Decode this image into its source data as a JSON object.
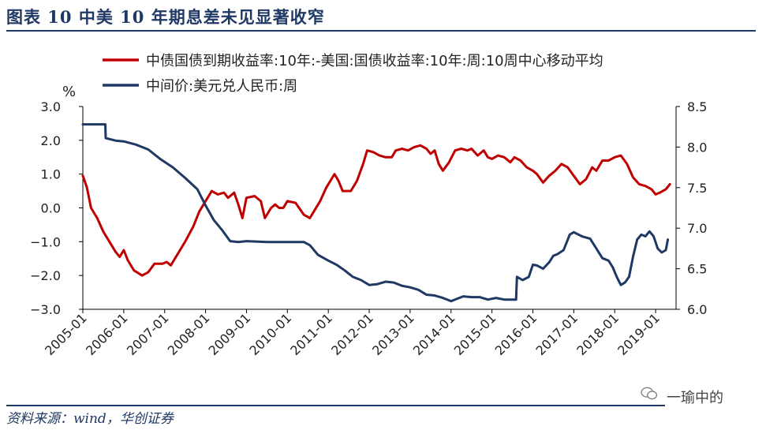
{
  "header": {
    "figure_title": "图表 10 中美 10 年期息差未见显著收窄"
  },
  "footer": {
    "source": "资料来源：wind，华创证券",
    "watermark": "一瑜中的"
  },
  "chart_data": {
    "type": "line",
    "left_axis_unit": "%",
    "ylim_left": [
      -3.0,
      3.0
    ],
    "ylim_right": [
      6.0,
      8.5
    ],
    "left_ticks": [
      "3.0",
      "2.0",
      "1.0",
      "0.0",
      "−1.0",
      "−2.0",
      "−3.0"
    ],
    "right_ticks": [
      "8.5",
      "8.0",
      "7.5",
      "7.0",
      "6.5",
      "6.0"
    ],
    "x_ticks": [
      "2005-01",
      "2006-01",
      "2007-01",
      "2008-01",
      "2009-01",
      "2010-01",
      "2011-01",
      "2012-01",
      "2013-01",
      "2014-01",
      "2015-01",
      "2016-01",
      "2017-01",
      "2018-01",
      "2019-01"
    ],
    "legend_position": "top",
    "series": [
      {
        "name": "中债国债到期收益率:10年:-美国:国债收益率:10年:周:10周中心移动平均",
        "axis": "left",
        "color": "#C00000",
        "points": [
          [
            2005.0,
            0.95
          ],
          [
            2005.1,
            0.6
          ],
          [
            2005.2,
            0.0
          ],
          [
            2005.35,
            -0.3
          ],
          [
            2005.5,
            -0.7
          ],
          [
            2005.65,
            -1.0
          ],
          [
            2005.8,
            -1.3
          ],
          [
            2005.9,
            -1.45
          ],
          [
            2006.0,
            -1.25
          ],
          [
            2006.1,
            -1.55
          ],
          [
            2006.25,
            -1.85
          ],
          [
            2006.45,
            -2.0
          ],
          [
            2006.6,
            -1.9
          ],
          [
            2006.75,
            -1.65
          ],
          [
            2006.95,
            -1.65
          ],
          [
            2007.05,
            -1.6
          ],
          [
            2007.15,
            -1.7
          ],
          [
            2007.3,
            -1.4
          ],
          [
            2007.5,
            -1.0
          ],
          [
            2007.7,
            -0.55
          ],
          [
            2007.85,
            -0.1
          ],
          [
            2008.0,
            0.2
          ],
          [
            2008.15,
            0.5
          ],
          [
            2008.3,
            0.4
          ],
          [
            2008.45,
            0.45
          ],
          [
            2008.55,
            0.3
          ],
          [
            2008.7,
            0.45
          ],
          [
            2008.8,
            0.1
          ],
          [
            2008.9,
            -0.3
          ],
          [
            2009.0,
            0.3
          ],
          [
            2009.2,
            0.35
          ],
          [
            2009.35,
            0.2
          ],
          [
            2009.45,
            -0.3
          ],
          [
            2009.6,
            0.0
          ],
          [
            2009.7,
            0.1
          ],
          [
            2009.8,
            0.0
          ],
          [
            2009.9,
            0.0
          ],
          [
            2010.0,
            0.2
          ],
          [
            2010.2,
            0.15
          ],
          [
            2010.4,
            -0.2
          ],
          [
            2010.55,
            -0.3
          ],
          [
            2010.65,
            -0.1
          ],
          [
            2010.8,
            0.2
          ],
          [
            2010.95,
            0.6
          ],
          [
            2011.15,
            1.0
          ],
          [
            2011.25,
            0.8
          ],
          [
            2011.35,
            0.5
          ],
          [
            2011.55,
            0.5
          ],
          [
            2011.7,
            0.8
          ],
          [
            2011.85,
            1.3
          ],
          [
            2011.95,
            1.7
          ],
          [
            2012.1,
            1.65
          ],
          [
            2012.25,
            1.55
          ],
          [
            2012.4,
            1.5
          ],
          [
            2012.55,
            1.5
          ],
          [
            2012.65,
            1.7
          ],
          [
            2012.8,
            1.75
          ],
          [
            2012.95,
            1.7
          ],
          [
            2013.1,
            1.8
          ],
          [
            2013.25,
            1.85
          ],
          [
            2013.4,
            1.75
          ],
          [
            2013.5,
            1.6
          ],
          [
            2013.6,
            1.7
          ],
          [
            2013.7,
            1.3
          ],
          [
            2013.8,
            1.1
          ],
          [
            2013.95,
            1.35
          ],
          [
            2014.1,
            1.7
          ],
          [
            2014.25,
            1.75
          ],
          [
            2014.4,
            1.7
          ],
          [
            2014.5,
            1.75
          ],
          [
            2014.65,
            1.55
          ],
          [
            2014.8,
            1.7
          ],
          [
            2014.9,
            1.5
          ],
          [
            2015.0,
            1.45
          ],
          [
            2015.15,
            1.55
          ],
          [
            2015.3,
            1.5
          ],
          [
            2015.45,
            1.35
          ],
          [
            2015.55,
            1.5
          ],
          [
            2015.7,
            1.4
          ],
          [
            2015.85,
            1.2
          ],
          [
            2016.0,
            1.1
          ],
          [
            2016.1,
            1.0
          ],
          [
            2016.25,
            0.75
          ],
          [
            2016.4,
            0.95
          ],
          [
            2016.55,
            1.1
          ],
          [
            2016.7,
            1.3
          ],
          [
            2016.85,
            1.2
          ],
          [
            2017.0,
            0.95
          ],
          [
            2017.15,
            0.7
          ],
          [
            2017.3,
            0.85
          ],
          [
            2017.45,
            1.2
          ],
          [
            2017.55,
            1.1
          ],
          [
            2017.7,
            1.4
          ],
          [
            2017.85,
            1.4
          ],
          [
            2018.0,
            1.5
          ],
          [
            2018.15,
            1.55
          ],
          [
            2018.3,
            1.3
          ],
          [
            2018.45,
            0.9
          ],
          [
            2018.6,
            0.7
          ],
          [
            2018.75,
            0.65
          ],
          [
            2018.9,
            0.55
          ],
          [
            2019.0,
            0.4
          ],
          [
            2019.1,
            0.45
          ],
          [
            2019.25,
            0.55
          ],
          [
            2019.35,
            0.7
          ]
        ]
      },
      {
        "name": "中间价:美元兑人民币:周",
        "axis": "right",
        "color": "#1F3864",
        "points": [
          [
            2005.0,
            8.28
          ],
          [
            2005.55,
            8.28
          ],
          [
            2005.56,
            8.11
          ],
          [
            2005.8,
            8.08
          ],
          [
            2006.0,
            8.07
          ],
          [
            2006.3,
            8.03
          ],
          [
            2006.6,
            7.97
          ],
          [
            2006.9,
            7.85
          ],
          [
            2007.2,
            7.75
          ],
          [
            2007.5,
            7.62
          ],
          [
            2007.8,
            7.48
          ],
          [
            2008.0,
            7.28
          ],
          [
            2008.2,
            7.1
          ],
          [
            2008.4,
            6.98
          ],
          [
            2008.6,
            6.84
          ],
          [
            2008.8,
            6.83
          ],
          [
            2009.0,
            6.84
          ],
          [
            2009.5,
            6.83
          ],
          [
            2010.0,
            6.83
          ],
          [
            2010.4,
            6.83
          ],
          [
            2010.55,
            6.79
          ],
          [
            2010.75,
            6.67
          ],
          [
            2011.0,
            6.6
          ],
          [
            2011.2,
            6.55
          ],
          [
            2011.4,
            6.48
          ],
          [
            2011.6,
            6.4
          ],
          [
            2011.8,
            6.36
          ],
          [
            2012.0,
            6.3
          ],
          [
            2012.2,
            6.31
          ],
          [
            2012.4,
            6.34
          ],
          [
            2012.6,
            6.33
          ],
          [
            2012.8,
            6.29
          ],
          [
            2013.0,
            6.27
          ],
          [
            2013.2,
            6.24
          ],
          [
            2013.4,
            6.18
          ],
          [
            2013.6,
            6.17
          ],
          [
            2013.8,
            6.14
          ],
          [
            2014.0,
            6.1
          ],
          [
            2014.15,
            6.13
          ],
          [
            2014.3,
            6.16
          ],
          [
            2014.5,
            6.15
          ],
          [
            2014.7,
            6.15
          ],
          [
            2014.9,
            6.12
          ],
          [
            2015.1,
            6.14
          ],
          [
            2015.3,
            6.12
          ],
          [
            2015.5,
            6.12
          ],
          [
            2015.59,
            6.12
          ],
          [
            2015.61,
            6.4
          ],
          [
            2015.75,
            6.36
          ],
          [
            2015.9,
            6.4
          ],
          [
            2016.0,
            6.55
          ],
          [
            2016.1,
            6.54
          ],
          [
            2016.25,
            6.5
          ],
          [
            2016.4,
            6.58
          ],
          [
            2016.5,
            6.66
          ],
          [
            2016.6,
            6.68
          ],
          [
            2016.75,
            6.73
          ],
          [
            2016.9,
            6.92
          ],
          [
            2017.0,
            6.95
          ],
          [
            2017.2,
            6.9
          ],
          [
            2017.4,
            6.87
          ],
          [
            2017.55,
            6.75
          ],
          [
            2017.7,
            6.63
          ],
          [
            2017.85,
            6.6
          ],
          [
            2017.95,
            6.52
          ],
          [
            2018.05,
            6.4
          ],
          [
            2018.15,
            6.3
          ],
          [
            2018.25,
            6.33
          ],
          [
            2018.35,
            6.4
          ],
          [
            2018.45,
            6.65
          ],
          [
            2018.55,
            6.86
          ],
          [
            2018.65,
            6.92
          ],
          [
            2018.75,
            6.9
          ],
          [
            2018.85,
            6.96
          ],
          [
            2018.95,
            6.9
          ],
          [
            2019.05,
            6.75
          ],
          [
            2019.15,
            6.7
          ],
          [
            2019.25,
            6.73
          ],
          [
            2019.3,
            6.86
          ]
        ]
      }
    ]
  }
}
